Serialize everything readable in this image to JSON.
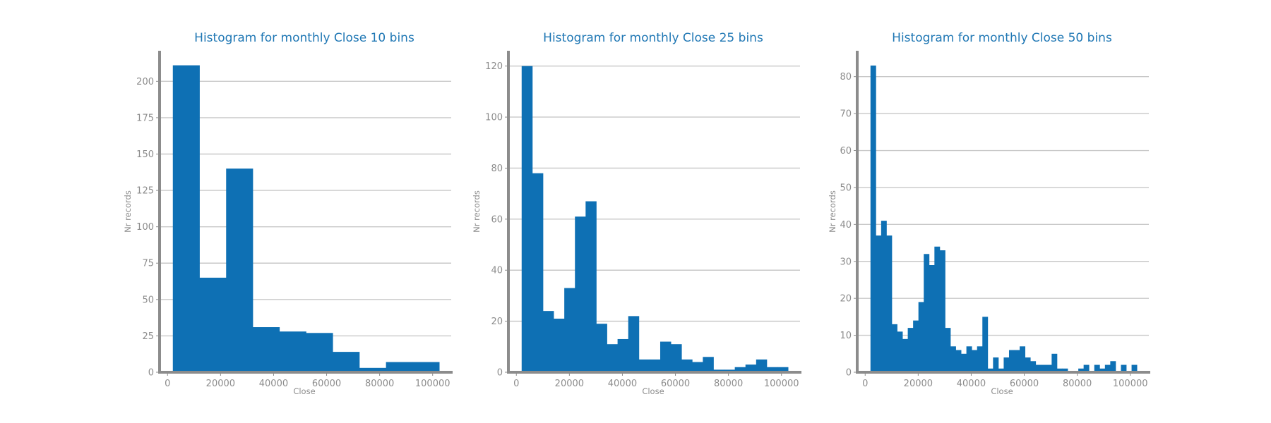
{
  "chart_data": [
    {
      "type": "bar",
      "title": "Histogram for monthly Close 10 bins",
      "xlabel": "Close",
      "ylabel": "Nr records",
      "xlim": [
        -3000,
        107000
      ],
      "ylim": [
        0,
        221
      ],
      "xticks": [
        0,
        20000,
        40000,
        60000,
        80000,
        100000
      ],
      "yticks": [
        0,
        25,
        50,
        75,
        100,
        125,
        150,
        175,
        200
      ],
      "grid": "horizontal",
      "bin_start": 2000,
      "bin_end": 102500,
      "values": [
        211,
        65,
        140,
        31,
        28,
        27,
        14,
        3,
        7,
        7
      ]
    },
    {
      "type": "bar",
      "title": "Histogram for monthly Close 25 bins",
      "xlabel": "Close",
      "ylabel": "Nr records",
      "xlim": [
        -3000,
        107000
      ],
      "ylim": [
        0,
        126
      ],
      "xticks": [
        0,
        20000,
        40000,
        60000,
        80000,
        100000
      ],
      "yticks": [
        0,
        20,
        40,
        60,
        80,
        100,
        120
      ],
      "grid": "horizontal",
      "bin_start": 2000,
      "bin_end": 102500,
      "values": [
        120,
        78,
        24,
        21,
        33,
        61,
        67,
        19,
        11,
        13,
        22,
        5,
        5,
        12,
        11,
        5,
        4,
        6,
        1,
        1,
        2,
        3,
        5,
        2,
        2
      ]
    },
    {
      "type": "bar",
      "title": "Histogram for monthly Close 50 bins",
      "xlabel": "Close",
      "ylabel": "Nr records",
      "xlim": [
        -3000,
        107000
      ],
      "ylim": [
        0,
        87
      ],
      "xticks": [
        0,
        20000,
        40000,
        60000,
        80000,
        100000
      ],
      "yticks": [
        0,
        10,
        20,
        30,
        40,
        50,
        60,
        70,
        80
      ],
      "grid": "horizontal",
      "bin_start": 2000,
      "bin_end": 102500,
      "values": [
        83,
        37,
        41,
        37,
        13,
        11,
        9,
        12,
        14,
        19,
        32,
        29,
        34,
        33,
        12,
        7,
        6,
        5,
        7,
        6,
        7,
        15,
        1,
        4,
        1,
        4,
        6,
        6,
        7,
        4,
        3,
        2,
        2,
        2,
        5,
        1,
        1,
        0,
        0,
        1,
        2,
        0,
        2,
        1,
        2,
        3,
        0,
        2,
        0,
        2
      ]
    }
  ]
}
